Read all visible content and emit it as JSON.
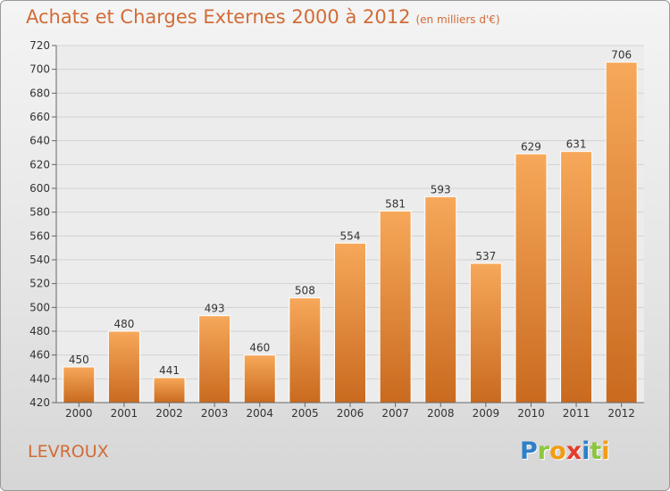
{
  "title": "Achats et Charges Externes 2000 à 2012",
  "subtitle": "(en milliers d'€)",
  "commune": "LEVROUX",
  "logo": {
    "letters": [
      {
        "ch": "P",
        "color": "#2f7fc9"
      },
      {
        "ch": "r",
        "color": "#8cc63f"
      },
      {
        "ch": "o",
        "color": "#f39c12"
      },
      {
        "ch": "x",
        "color": "#e53b2c"
      },
      {
        "ch": "i",
        "color": "#2f7fc9"
      },
      {
        "ch": "t",
        "color": "#8cc63f"
      },
      {
        "ch": "i",
        "color": "#f39c12"
      }
    ]
  },
  "colors": {
    "accent": "#d26b36",
    "bar_top": "#f7a85a",
    "bar_bottom": "#c96a1f"
  },
  "chart_data": {
    "type": "bar",
    "title": "Achats et Charges Externes 2000 à 2012",
    "subtitle": "(en milliers d'€)",
    "xlabel": "",
    "ylabel": "",
    "categories": [
      "2000",
      "2001",
      "2002",
      "2003",
      "2004",
      "2005",
      "2006",
      "2007",
      "2008",
      "2009",
      "2010",
      "2011",
      "2012"
    ],
    "values": [
      450,
      480,
      441,
      493,
      460,
      508,
      554,
      581,
      593,
      537,
      629,
      631,
      706
    ],
    "ylim": [
      420,
      720
    ],
    "yticks": [
      420,
      440,
      460,
      480,
      500,
      520,
      540,
      560,
      580,
      600,
      620,
      640,
      660,
      680,
      700,
      720
    ],
    "grid": true,
    "legend": "none"
  }
}
